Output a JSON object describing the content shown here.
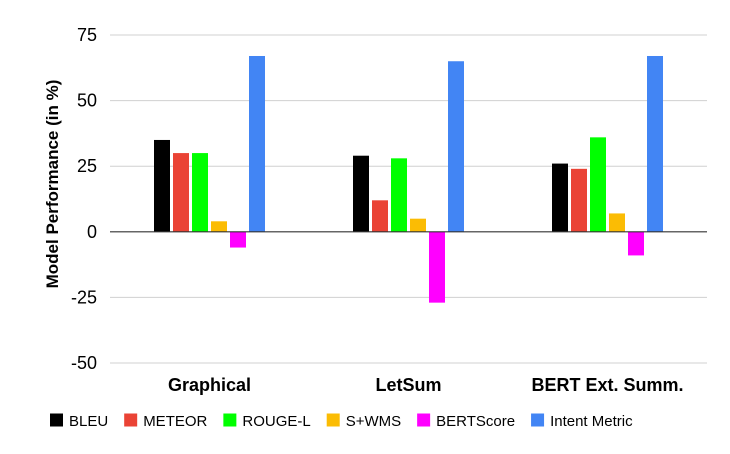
{
  "chart_data": {
    "type": "bar",
    "title": "",
    "xlabel": "",
    "ylabel": "Model Performance (in %)",
    "ylim": [
      -50,
      75
    ],
    "yticks": [
      75,
      50,
      25,
      0,
      -25,
      -50
    ],
    "grid": true,
    "legend_position": "bottom",
    "categories": [
      "Graphical",
      "LetSum",
      "BERT Ext. Summ."
    ],
    "series": [
      {
        "name": "BLEU",
        "color": "#000000",
        "values": [
          35,
          29,
          26
        ]
      },
      {
        "name": "METEOR",
        "color": "#ea4335",
        "values": [
          30,
          12,
          24
        ]
      },
      {
        "name": "ROUGE-L",
        "color": "#00ff00",
        "values": [
          30,
          28,
          36
        ]
      },
      {
        "name": "S+WMS",
        "color": "#fbbc04",
        "values": [
          4,
          5,
          7
        ]
      },
      {
        "name": "BERTScore",
        "color": "#ff00ff",
        "values": [
          -6,
          -27,
          -9
        ]
      },
      {
        "name": "Intent Metric",
        "color": "#4285f4",
        "values": [
          67,
          65,
          67
        ]
      }
    ]
  }
}
